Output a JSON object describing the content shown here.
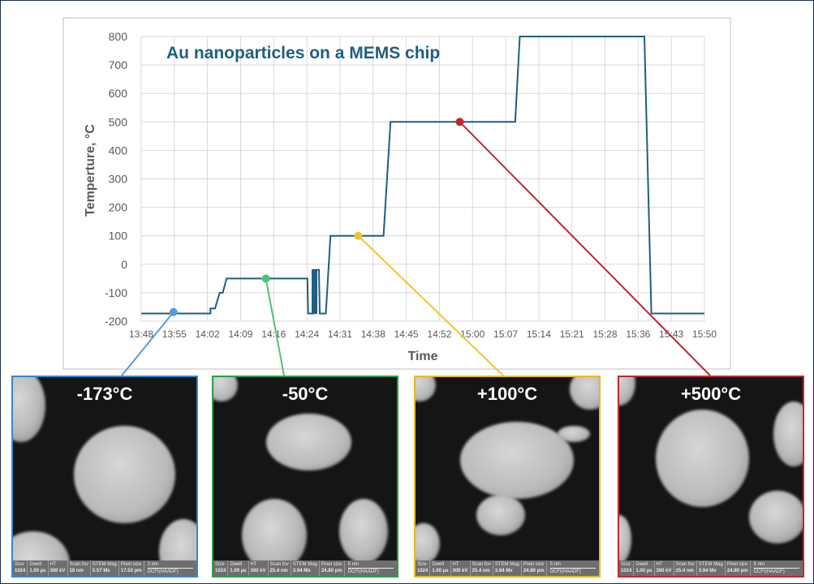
{
  "chart_data": {
    "type": "line",
    "title": "Au nanoparticles on a MEMS chip",
    "xlabel": "Time",
    "ylabel": "Temperture, °C",
    "ylim": [
      -200,
      800
    ],
    "xlim": [
      "13:48",
      "15:50"
    ],
    "yticks": [
      800,
      700,
      600,
      500,
      400,
      300,
      200,
      100,
      0,
      -100,
      -200
    ],
    "xticks": [
      "13:48",
      "13:55",
      "14:02",
      "14:09",
      "14:16",
      "14:24",
      "14:31",
      "14:38",
      "14:45",
      "14:52",
      "15:00",
      "15:07",
      "15:14",
      "15:21",
      "15:28",
      "15:36",
      "15:43",
      "15:50"
    ],
    "grid": true,
    "line_color": "#1f5f7f",
    "series": [
      {
        "points": [
          [
            "13:48",
            -173
          ],
          [
            "14:03",
            -173
          ],
          [
            "14:03",
            -155
          ],
          [
            "14:04",
            -155
          ],
          [
            "14:05",
            -100
          ],
          [
            "14:05:40",
            -100
          ],
          [
            "14:06:30",
            -50
          ],
          [
            "14:24",
            -50
          ],
          [
            "14:24:10",
            -173
          ],
          [
            "14:25:20",
            -173
          ],
          [
            "14:25:30",
            -20
          ],
          [
            "14:26:30",
            -20
          ],
          [
            "14:26:40",
            -173
          ],
          [
            "14:28",
            -173
          ],
          [
            "14:29",
            100
          ],
          [
            "14:40:30",
            100
          ],
          [
            "14:42",
            500
          ],
          [
            "15:09",
            500
          ],
          [
            "15:10",
            800
          ],
          [
            "15:37",
            800
          ],
          [
            "15:38:30",
            -173
          ],
          [
            "15:50",
            -173
          ]
        ]
      }
    ],
    "annotations": [
      {
        "time": "13:55",
        "temp": -168,
        "label": "-173°C",
        "color": "#5b9bd5"
      },
      {
        "time": "14:15",
        "temp": -50,
        "label": "-50°C",
        "color": "#4fc27a"
      },
      {
        "time": "14:35",
        "temp": 100,
        "label": "+100°C",
        "color": "#f2c530"
      },
      {
        "time": "14:57",
        "temp": 500,
        "label": "+500°C",
        "color": "#c0282d"
      }
    ]
  },
  "panels": [
    {
      "label": "-173°C",
      "color": "#3b86c8",
      "info": {
        "size": "1024",
        "dwell": "1.00 µs",
        "ht": "300 kV",
        "fov": "18 nm",
        "mag": "5.57 Mx",
        "pix": "17.53 pm",
        "scale": "2 nm",
        "det": "DCFI(HAADF)"
      }
    },
    {
      "label": "-50°C",
      "color": "#2e9e48",
      "info": {
        "size": "1024",
        "dwell": "1.00 µs",
        "ht": "300 kV",
        "fov": "25.4 nm",
        "mag": "3.94 Mx",
        "pix": "24.80 pm",
        "scale": "5 nm",
        "det": "DCFI(HAADF)"
      }
    },
    {
      "label": "+100°C",
      "color": "#e8b923",
      "info": {
        "size": "1024",
        "dwell": "1.00 µs",
        "ht": "300 kV",
        "fov": "25.4 nm",
        "mag": "3.94 Mx",
        "pix": "24.80 pm",
        "scale": "5 nm",
        "det": "DCFI(HAADF)"
      }
    },
    {
      "label": "+500°C",
      "color": "#c0282d",
      "info": {
        "size": "1024",
        "dwell": "1.00 µs",
        "ht": "300 kV",
        "fov": "25.4 nm",
        "mag": "3.94 Mx",
        "pix": "24.80 pm",
        "scale": "5 nm",
        "det": "DCFI(HAADF)"
      }
    }
  ],
  "info_labels": {
    "size": "Size",
    "dwell": "Dwell",
    "ht": "HT",
    "fov": "Scan fov",
    "mag": "STEM Mag",
    "pix": "Pixel size"
  }
}
